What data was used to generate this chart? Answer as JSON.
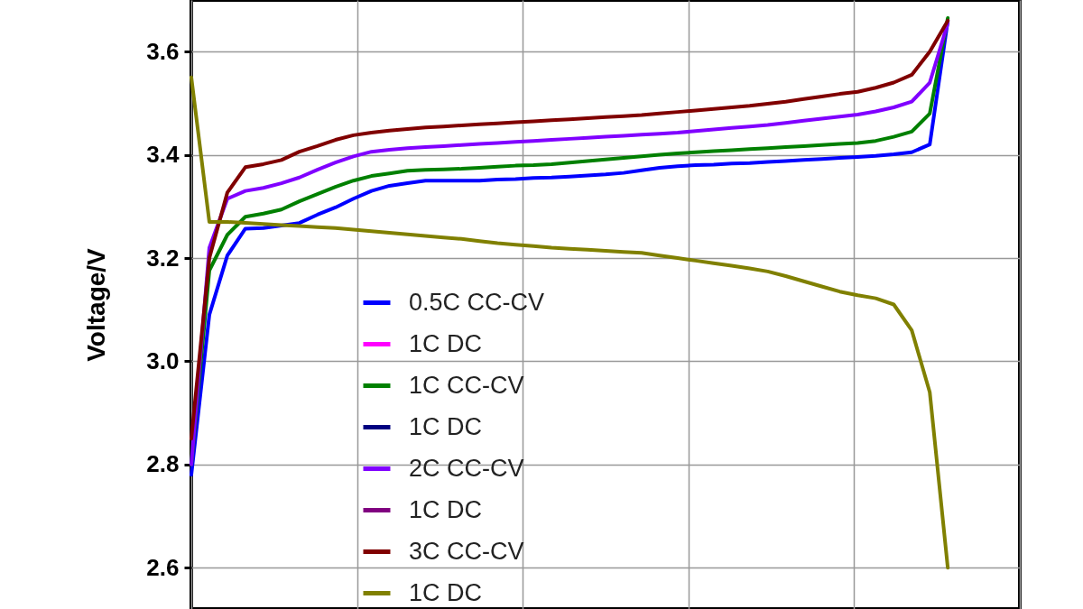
{
  "chart_data": {
    "type": "line",
    "ylabel": "Voltage/V",
    "categories": [
      null,
      null,
      null,
      null,
      null,
      null,
      null,
      null,
      null,
      null,
      null,
      null,
      null,
      null,
      null,
      null,
      null,
      null,
      null,
      null,
      null,
      null,
      null,
      null,
      null,
      null,
      null,
      null,
      null,
      null,
      null,
      null,
      null,
      null,
      null,
      null,
      null,
      null,
      null,
      null,
      null,
      null,
      null,
      null,
      null,
      null,
      null
    ],
    "ylim": [
      2.52,
      3.7
    ],
    "yticks": [
      2.6,
      2.8,
      {
        "value": 3.0,
        "label": "3.0"
      },
      3.2,
      3.4,
      3.6
    ],
    "grid": true,
    "legend": "bottom",
    "line_style": "solid",
    "marker": "none",
    "series": [
      {
        "name": "0.5C CC-CV",
        "color": "#0000ff",
        "values": [
          2.78,
          3.09,
          3.205,
          3.257,
          3.258,
          3.263,
          3.268,
          3.284,
          3.298,
          3.315,
          3.33,
          3.34,
          3.345,
          3.35,
          3.35,
          3.35,
          3.35,
          3.352,
          3.353,
          3.355,
          3.356,
          3.358,
          3.36,
          3.362,
          3.365,
          3.37,
          3.375,
          3.378,
          3.38,
          3.381,
          3.383,
          3.384,
          3.386,
          3.388,
          3.39,
          3.392,
          3.394,
          3.396,
          3.398,
          3.401,
          3.405,
          3.42,
          3.66,
          null,
          null,
          null,
          null
        ]
      },
      {
        "name": "1C DC",
        "color": "#ff00ff",
        "values": [
          null,
          null,
          null,
          null,
          null,
          null,
          null,
          null,
          null,
          null,
          null,
          null,
          null,
          null,
          null,
          null,
          null,
          null,
          null,
          null,
          null,
          null,
          null,
          null,
          null,
          null,
          null,
          null,
          null,
          null,
          null,
          null,
          null,
          null,
          null,
          null,
          null,
          null,
          null,
          null,
          null,
          null,
          null,
          null,
          null,
          null,
          null
        ]
      },
      {
        "name": "1C CC-CV",
        "color": "#008000",
        "values": [
          2.8,
          3.176,
          3.245,
          3.28,
          3.286,
          3.294,
          3.31,
          3.324,
          3.338,
          3.35,
          3.359,
          3.364,
          3.369,
          3.371,
          3.372,
          3.373,
          3.375,
          3.377,
          3.379,
          3.38,
          3.382,
          3.385,
          3.388,
          3.391,
          3.394,
          3.397,
          3.4,
          3.403,
          3.405,
          3.407,
          3.409,
          3.411,
          3.413,
          3.415,
          3.417,
          3.419,
          3.421,
          3.423,
          3.427,
          3.435,
          3.445,
          3.48,
          3.665,
          null,
          null,
          null,
          null
        ]
      },
      {
        "name": "1C DC",
        "color": "#000080",
        "values": [
          null,
          null,
          null,
          null,
          null,
          null,
          null,
          null,
          null,
          null,
          null,
          null,
          null,
          null,
          null,
          null,
          null,
          null,
          null,
          null,
          null,
          null,
          null,
          null,
          null,
          null,
          null,
          null,
          null,
          null,
          null,
          null,
          null,
          null,
          null,
          null,
          null,
          null,
          null,
          null,
          null,
          null,
          null,
          null,
          null,
          null,
          null
        ]
      },
      {
        "name": "2C CC-CV",
        "color": "#8000ff",
        "values": [
          2.8,
          3.22,
          3.315,
          3.33,
          3.336,
          3.345,
          3.356,
          3.371,
          3.385,
          3.397,
          3.406,
          3.41,
          3.413,
          3.415,
          3.417,
          3.419,
          3.421,
          3.423,
          3.425,
          3.427,
          3.429,
          3.431,
          3.433,
          3.435,
          3.437,
          3.439,
          3.441,
          3.443,
          3.446,
          3.449,
          3.452,
          3.455,
          3.458,
          3.462,
          3.466,
          3.47,
          3.474,
          3.478,
          3.484,
          3.492,
          3.503,
          3.54,
          3.655,
          null,
          null,
          null,
          null
        ]
      },
      {
        "name": "1C DC",
        "color": "#800080",
        "values": [
          null,
          null,
          null,
          null,
          null,
          null,
          null,
          null,
          null,
          null,
          null,
          null,
          null,
          null,
          null,
          null,
          null,
          null,
          null,
          null,
          null,
          null,
          null,
          null,
          null,
          null,
          null,
          null,
          null,
          null,
          null,
          null,
          null,
          null,
          null,
          null,
          null,
          null,
          null,
          null,
          null,
          null,
          null,
          null,
          null,
          null,
          null
        ]
      },
      {
        "name": "3C CC-CV",
        "color": "#800000",
        "values": [
          2.85,
          3.2,
          3.327,
          3.376,
          3.382,
          3.39,
          3.406,
          3.417,
          3.429,
          3.438,
          3.443,
          3.447,
          3.45,
          3.453,
          3.455,
          3.457,
          3.459,
          3.461,
          3.463,
          3.465,
          3.467,
          3.469,
          3.471,
          3.473,
          3.475,
          3.477,
          3.48,
          3.483,
          3.486,
          3.489,
          3.492,
          3.495,
          3.499,
          3.503,
          3.508,
          3.513,
          3.518,
          3.522,
          3.53,
          3.54,
          3.555,
          3.6,
          3.66,
          null,
          null,
          null,
          null
        ]
      },
      {
        "name": "1C DC",
        "color": "#808000",
        "values": [
          3.55,
          3.27,
          3.27,
          3.268,
          3.266,
          3.264,
          3.262,
          3.26,
          3.258,
          3.255,
          3.252,
          3.249,
          3.246,
          3.243,
          3.24,
          3.237,
          3.233,
          3.229,
          3.226,
          3.223,
          3.22,
          3.218,
          3.216,
          3.214,
          3.212,
          3.21,
          3.205,
          3.2,
          3.195,
          3.19,
          3.185,
          3.18,
          3.174,
          3.165,
          3.155,
          3.145,
          3.135,
          3.128,
          3.122,
          3.11,
          3.06,
          2.94,
          2.6,
          null,
          null,
          null,
          null
        ]
      }
    ]
  }
}
